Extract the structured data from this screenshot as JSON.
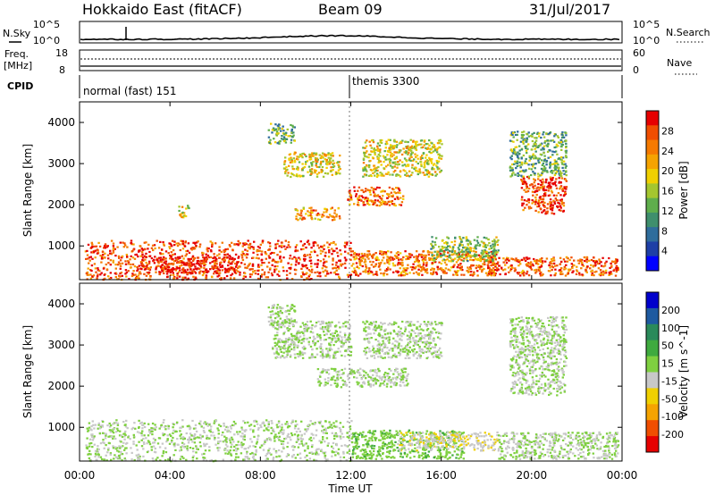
{
  "header": {
    "station": "Hokkaido East (fitACF)",
    "beam": "Beam 09",
    "date": "31/Jul/2017"
  },
  "top_panels": {
    "nsky_label": "N.Sky",
    "nsky_ticks": [
      "10^5",
      "10^0"
    ],
    "nsearch_label": "N.Search",
    "nsearch_ticks": [
      "10^5",
      "10^0"
    ],
    "freq_label_1": "Freq.",
    "freq_label_2": "[MHz]",
    "freq_ticks": [
      "18",
      "8"
    ],
    "nave_label": "Nave",
    "nave_ticks": [
      "60",
      "0"
    ],
    "cpid_label": "CPID",
    "cpid_segments": [
      {
        "label": "normal (fast) 151",
        "start_hour": 0
      },
      {
        "label": "themis 3300",
        "start_hour": 12
      }
    ]
  },
  "chart_data": [
    {
      "type": "heatmap",
      "title": "",
      "xlabel": "Time UT",
      "ylabel": "Slant Range [km]",
      "xlim": [
        0,
        24
      ],
      "ylim": [
        180,
        4500
      ],
      "x_ticks": [
        "00:00",
        "04:00",
        "08:00",
        "12:00",
        "16:00",
        "20:00",
        "00:00"
      ],
      "y_ticks": [
        "1000",
        "2000",
        "3000",
        "4000"
      ],
      "colorbar": {
        "label": "Power [dB]",
        "ticks": [
          "28",
          "24",
          "20",
          "16",
          "12",
          "8",
          "4"
        ],
        "range": [
          0,
          30
        ],
        "colors": [
          "#0000ff",
          "#1e3fa6",
          "#2f6d9c",
          "#3f8f6d",
          "#5fae4c",
          "#a4c62f",
          "#f0d000",
          "#f5a300",
          "#f57a00",
          "#f04e00",
          "#e60000"
        ]
      },
      "regions": [
        {
          "t0": 0.2,
          "t1": 12.0,
          "r0": 200,
          "r1": 1150,
          "value": 26
        },
        {
          "t0": 2.5,
          "t1": 7.0,
          "r0": 350,
          "r1": 750,
          "value": 29
        },
        {
          "t0": 12.0,
          "t1": 18.5,
          "r0": 300,
          "r1": 900,
          "value": 24
        },
        {
          "t0": 15.5,
          "t1": 18.5,
          "r0": 650,
          "r1": 1250,
          "value": 14
        },
        {
          "t0": 18.0,
          "t1": 23.8,
          "r0": 300,
          "r1": 750,
          "value": 25
        },
        {
          "t0": 11.8,
          "t1": 14.3,
          "r0": 2000,
          "r1": 2450,
          "value": 24
        },
        {
          "t0": 9.5,
          "t1": 11.5,
          "r0": 1650,
          "r1": 1950,
          "value": 22
        },
        {
          "t0": 8.3,
          "t1": 9.5,
          "r0": 3500,
          "r1": 4000,
          "value": 12
        },
        {
          "t0": 9.0,
          "t1": 11.5,
          "r0": 2700,
          "r1": 3300,
          "value": 18
        },
        {
          "t0": 12.5,
          "t1": 16.0,
          "r0": 2700,
          "r1": 3600,
          "value": 17
        },
        {
          "t0": 19.5,
          "t1": 21.5,
          "r0": 1800,
          "r1": 2700,
          "value": 27
        },
        {
          "t0": 19.0,
          "t1": 21.5,
          "r0": 2700,
          "r1": 3800,
          "value": 12
        },
        {
          "t0": 4.3,
          "t1": 4.8,
          "r0": 1700,
          "r1": 2000,
          "value": 18
        }
      ]
    },
    {
      "type": "heatmap",
      "title": "",
      "xlabel": "Time UT",
      "ylabel": "Slant Range [km]",
      "xlim": [
        0,
        24
      ],
      "ylim": [
        180,
        4500
      ],
      "x_ticks": [
        "00:00",
        "04:00",
        "08:00",
        "12:00",
        "16:00",
        "20:00",
        "00:00"
      ],
      "y_ticks": [
        "1000",
        "2000",
        "3000",
        "4000"
      ],
      "colorbar": {
        "label": "Velocity [m s^-1]",
        "ticks": [
          "200",
          "100",
          "50",
          "15",
          "-15",
          "-50",
          "-100",
          "-200"
        ],
        "range": [
          -250,
          250
        ],
        "colors": [
          "#e60000",
          "#f04e00",
          "#f5a300",
          "#f0d000",
          "#c8c8c8",
          "#7fd040",
          "#3faa3f",
          "#2a8a5a",
          "#1e5aa0",
          "#0000cc"
        ]
      },
      "regions": [
        {
          "t0": 0.2,
          "t1": 12.0,
          "r0": 200,
          "r1": 1200,
          "value": 0
        },
        {
          "t0": 12.0,
          "t1": 17.0,
          "r0": 250,
          "r1": 950,
          "value": 35
        },
        {
          "t0": 14.0,
          "t1": 18.5,
          "r0": 450,
          "r1": 900,
          "value": -40
        },
        {
          "t0": 18.5,
          "t1": 23.8,
          "r0": 250,
          "r1": 900,
          "value": 0
        },
        {
          "t0": 10.5,
          "t1": 14.5,
          "r0": 2000,
          "r1": 2450,
          "value": 0
        },
        {
          "t0": 19.0,
          "t1": 21.5,
          "r0": 1800,
          "r1": 3700,
          "value": 0
        },
        {
          "t0": 8.5,
          "t1": 12.0,
          "r0": 2700,
          "r1": 3600,
          "value": 0
        },
        {
          "t0": 12.5,
          "t1": 16.0,
          "r0": 2700,
          "r1": 3600,
          "value": 0
        },
        {
          "t0": 8.3,
          "t1": 9.5,
          "r0": 3500,
          "r1": 4000,
          "value": 0
        }
      ]
    }
  ]
}
